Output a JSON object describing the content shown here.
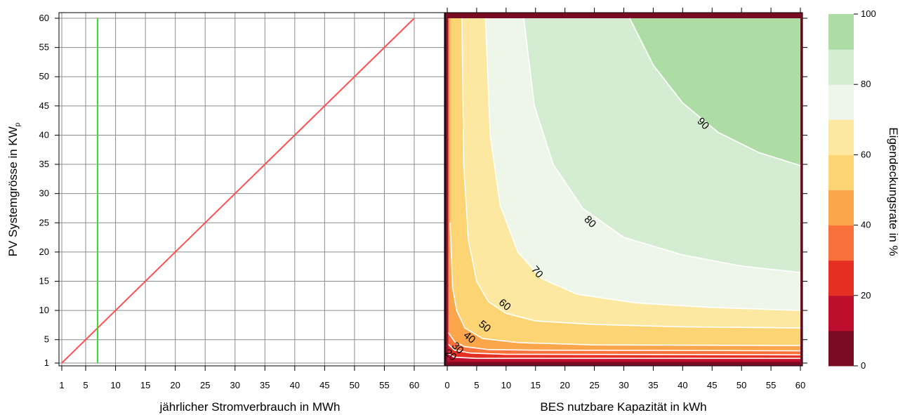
{
  "chart_data": [
    {
      "type": "line",
      "xlabel": "jährlicher Stromverbrauch in MWh",
      "ylabel": "PV Systemgrösse in KW",
      "ylabel_subscript": "p",
      "xlim": [
        1,
        60
      ],
      "ylim": [
        1,
        60
      ],
      "x_ticks": [
        1,
        5,
        10,
        15,
        20,
        25,
        30,
        35,
        40,
        45,
        50,
        55,
        60
      ],
      "y_ticks": [
        1,
        5,
        10,
        15,
        20,
        25,
        30,
        35,
        40,
        45,
        50,
        55,
        60
      ],
      "grid": true,
      "series": [
        {
          "color": "#ff5050",
          "x": [
            1,
            60
          ],
          "y": [
            1,
            60
          ]
        },
        {
          "color": "#33dd33",
          "x": [
            7,
            7
          ],
          "y": [
            1,
            60
          ]
        }
      ]
    },
    {
      "type": "heatmap",
      "xlabel": "BES nutzbare Kapazität in kWh",
      "xlim": [
        0,
        60
      ],
      "ylim": [
        1,
        60
      ],
      "x_ticks": [
        0,
        5,
        10,
        15,
        20,
        25,
        30,
        35,
        40,
        45,
        50,
        55,
        60
      ],
      "colorbar": {
        "label": "Eigendeckungsrate in %",
        "ticks": [
          0,
          20,
          40,
          60,
          80,
          100
        ],
        "levels": [
          0,
          10,
          20,
          30,
          40,
          50,
          60,
          70,
          80,
          90,
          100
        ],
        "colors": [
          "#7a0b24",
          "#bd0f2d",
          "#e62f23",
          "#f9713a",
          "#fca54a",
          "#fdd474",
          "#fde8a2",
          "#eef6e9",
          "#d4edd2",
          "#aedca5"
        ]
      },
      "contour_labels": [
        {
          "value": 20,
          "x": 0.6,
          "y": 2.4
        },
        {
          "value": 30,
          "x": 1.8,
          "y": 3.6
        },
        {
          "value": 40,
          "x": 3.8,
          "y": 5.4
        },
        {
          "value": 50,
          "x": 6.4,
          "y": 7.3
        },
        {
          "value": 60,
          "x": 9.8,
          "y": 11.0
        },
        {
          "value": 70,
          "x": 15.3,
          "y": 16.6
        },
        {
          "value": 80,
          "x": 24.3,
          "y": 25.2
        },
        {
          "value": 90,
          "x": 43.5,
          "y": 42.0
        }
      ]
    }
  ]
}
